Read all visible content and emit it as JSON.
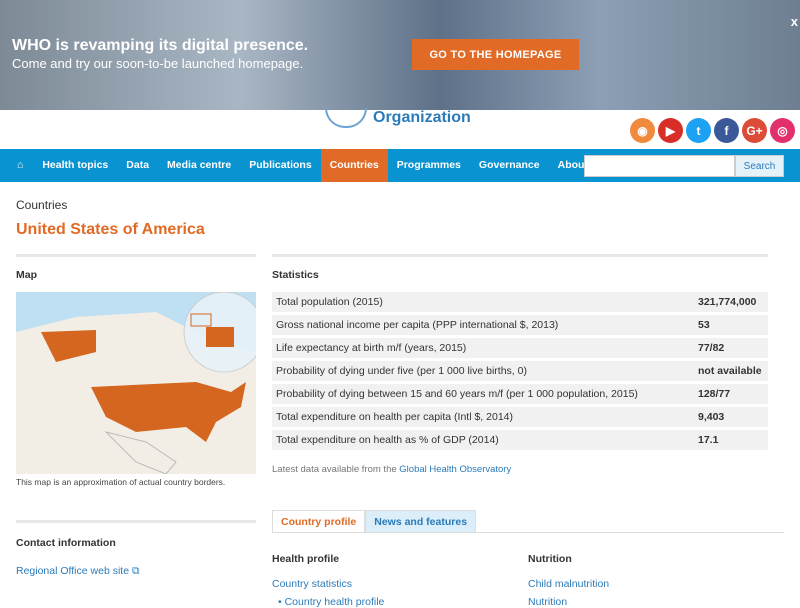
{
  "banner": {
    "title": "WHO is revamping its digital presence.",
    "subtitle": "Come and try our soon-to-be launched homepage.",
    "button": "GO TO THE HOMEPAGE",
    "close": "x"
  },
  "logo": {
    "text": "Organization"
  },
  "social": [
    {
      "icon": "rss-icon",
      "glyph": "◉",
      "color": "#f08a3c"
    },
    {
      "icon": "youtube-icon",
      "glyph": "▶",
      "color": "#d92d27"
    },
    {
      "icon": "twitter-icon",
      "glyph": "t",
      "color": "#1da1f2"
    },
    {
      "icon": "facebook-icon",
      "glyph": "f",
      "color": "#3b5998"
    },
    {
      "icon": "google-plus-icon",
      "glyph": "G+",
      "color": "#dd4b39"
    },
    {
      "icon": "instagram-icon",
      "glyph": "◎",
      "color": "#e1306c"
    }
  ],
  "nav": {
    "items": [
      "Health topics",
      "Data",
      "Media centre",
      "Publications",
      "Countries",
      "Programmes",
      "Governance",
      "About WHO"
    ],
    "active": "Countries",
    "search_button": "Search",
    "search_value": ""
  },
  "breadcrumb": "Countries",
  "page_title": "United States of America",
  "map": {
    "heading": "Map",
    "caption": "This map is an approximation of actual country borders."
  },
  "statistics": {
    "heading": "Statistics",
    "rows": [
      {
        "label": "Total population (2015)",
        "value": "321,774,000"
      },
      {
        "label": "Gross national income per capita (PPP international $, 2013)",
        "value": "53"
      },
      {
        "label": "Life expectancy at birth m/f (years, 2015)",
        "value": "77/82"
      },
      {
        "label": "Probability of dying under five (per 1 000 live births, 0)",
        "value": "not available"
      },
      {
        "label": "Probability of dying between 15 and 60 years m/f (per 1 000 population, 2015)",
        "value": "128/77"
      },
      {
        "label": "Total expenditure on health per capita (Intl $, 2014)",
        "value": "9,403"
      },
      {
        "label": "Total expenditure on health as % of GDP (2014)",
        "value": "17.1"
      }
    ],
    "note": "Latest data available from the ",
    "note_link": "Global Health Observatory"
  },
  "contact": {
    "heading": "Contact information",
    "link": "Regional Office web site"
  },
  "tabs": [
    "Country profile",
    "News and features"
  ],
  "health_profile": {
    "heading": "Health profile",
    "link": "Country statistics",
    "sub": "Country health profile"
  },
  "nutrition": {
    "heading": "Nutrition",
    "link": "Child malnutrition",
    "sub": "Nutrition"
  }
}
